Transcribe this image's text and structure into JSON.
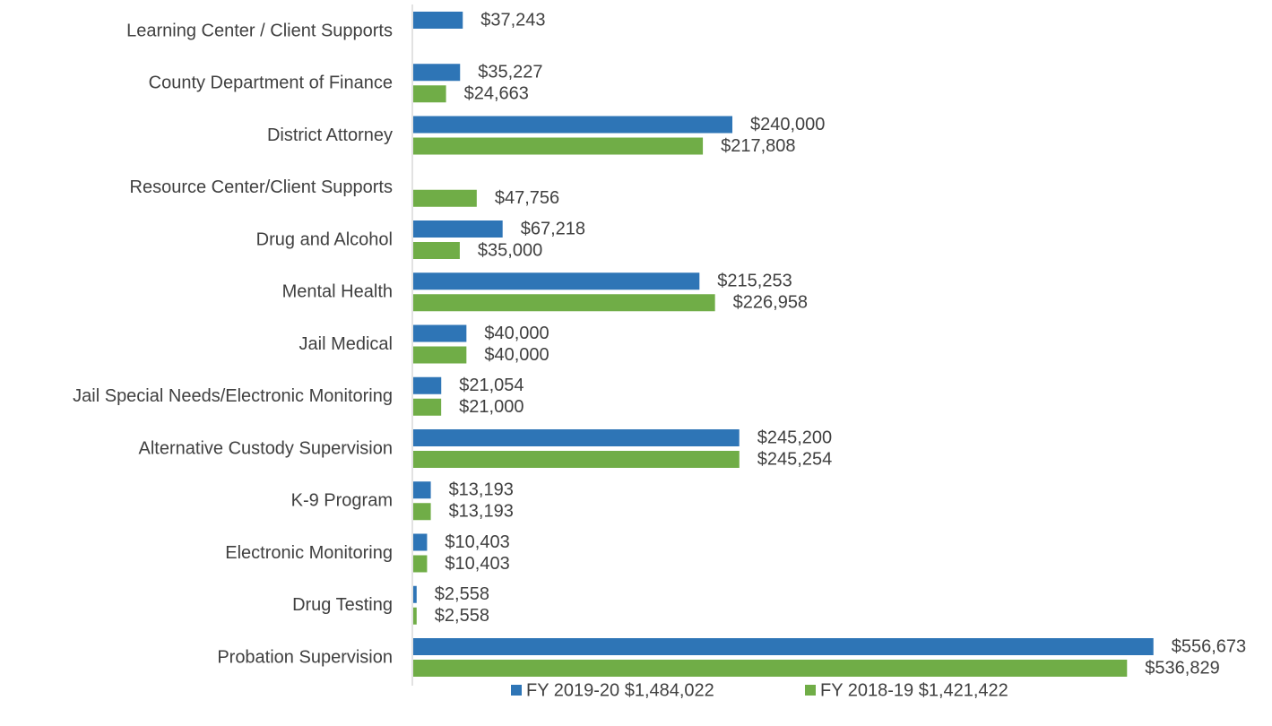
{
  "chart_data": {
    "type": "bar",
    "orientation": "horizontal",
    "categories": [
      "Learning Center / Client Supports",
      "County Department of Finance",
      "District Attorney",
      "Resource Center/Client Supports",
      "Drug and Alcohol ",
      "Mental Health",
      "Jail Medical",
      "Jail Special Needs/Electronic Monitoring",
      "Alternative Custody Supervision ",
      "K-9 Program",
      "Electronic Monitoring",
      "Drug Testing",
      "Probation Supervision "
    ],
    "series": [
      {
        "name": "FY 2019-20 $1,484,022",
        "color": "#2e75b6",
        "values": [
          37243,
          35227,
          240000,
          null,
          67218,
          215253,
          40000,
          21054,
          245200,
          13193,
          10403,
          2558,
          556673
        ],
        "value_labels": [
          "$37,243",
          "$35,227",
          "$240,000",
          null,
          "$67,218",
          "$215,253",
          "$40,000",
          "$21,054",
          "$245,200",
          "$13,193",
          "$10,403",
          "$2,558",
          "$556,673"
        ]
      },
      {
        "name": "FY 2018-19 $1,421,422",
        "color": "#70ad47",
        "values": [
          null,
          24663,
          217808,
          47756,
          35000,
          226958,
          40000,
          21000,
          245254,
          13193,
          10403,
          2558,
          536829
        ],
        "value_labels": [
          null,
          "$24,663",
          "$217,808",
          "$47,756",
          "$35,000",
          "$226,958",
          "$40,000",
          "$21,000",
          "$245,254",
          "$13,193",
          "$10,403",
          "$2,558",
          "$536,829"
        ]
      }
    ],
    "xlim": [
      0,
      600000
    ],
    "legend": "bottom"
  }
}
